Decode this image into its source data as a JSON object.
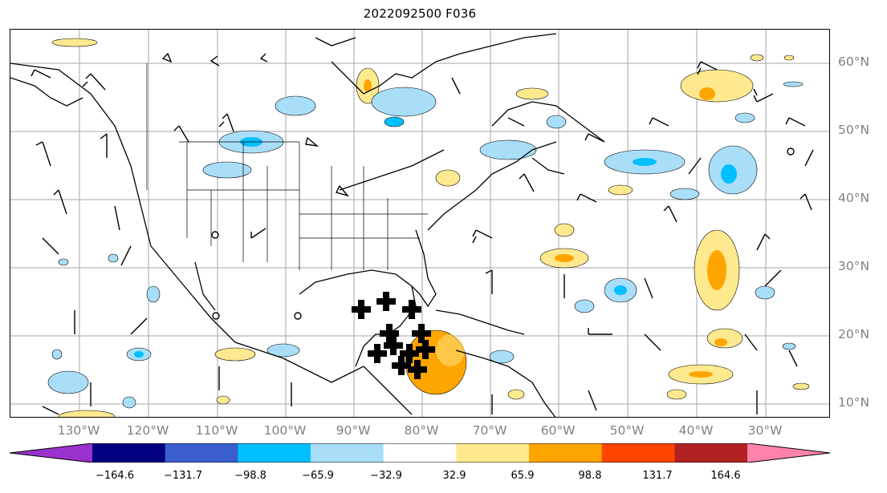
{
  "title": "2022092500 F036",
  "latitude_labels": [
    "60°N",
    "50°N",
    "40°N",
    "30°N",
    "20°N",
    "10°N"
  ],
  "longitude_labels": [
    "130°W",
    "120°W",
    "110°W",
    "100°W",
    "90°W",
    "80°W",
    "70°W",
    "60°W",
    "50°W",
    "40°W",
    "30°W"
  ],
  "colorbar": {
    "ticks": [
      "−164.6",
      "−131.7",
      "−98.8",
      "−65.9",
      "−32.9",
      "32.9",
      "65.9",
      "98.8",
      "131.7",
      "164.6"
    ],
    "colors": [
      "#9932cc",
      "#000080",
      "#3a5fcd",
      "#00bfff",
      "#a9def9",
      "#ffffff",
      "#ffe98f",
      "#ffa500",
      "#ff4500",
      "#b22222",
      "#ff82ab"
    ]
  },
  "colors": {
    "grid": "#a6a6a6",
    "coast": "#000000",
    "label": "#808080"
  }
}
